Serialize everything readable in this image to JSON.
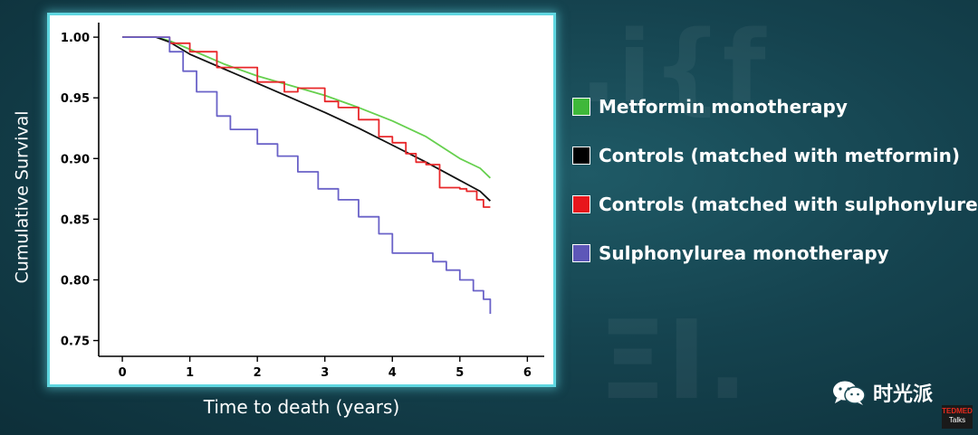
{
  "chart_data": {
    "type": "line",
    "title": "",
    "xlabel": "Time to death (years)",
    "ylabel": "Cumulative Survival",
    "xlim": [
      -0.35,
      6.25
    ],
    "ylim": [
      0.737,
      1.012
    ],
    "x_ticks": [
      0,
      1,
      2,
      3,
      4,
      5,
      6
    ],
    "y_ticks": [
      0.75,
      0.8,
      0.85,
      0.9,
      0.95,
      1.0
    ],
    "y_tick_labels": [
      "0.75",
      "0.80",
      "0.85",
      "0.90",
      "0.95",
      "1.00"
    ],
    "legend_position": "right",
    "series": [
      {
        "name": "Metformin monotherapy",
        "color": "#66d04e",
        "step": false,
        "x": [
          0,
          0.5,
          0.7,
          1.0,
          1.5,
          2.0,
          2.5,
          3.0,
          3.5,
          4.0,
          4.5,
          5.0,
          5.3,
          5.45
        ],
        "y": [
          1.0,
          1.0,
          0.997,
          0.99,
          0.978,
          0.968,
          0.96,
          0.952,
          0.942,
          0.931,
          0.918,
          0.9,
          0.892,
          0.884
        ]
      },
      {
        "name": "Controls (matched with metformin)",
        "color": "#111111",
        "step": false,
        "x": [
          0,
          0.5,
          0.7,
          1.0,
          1.5,
          2.0,
          2.5,
          3.0,
          3.5,
          4.0,
          4.5,
          5.0,
          5.3,
          5.45
        ],
        "y": [
          1.0,
          1.0,
          0.996,
          0.986,
          0.974,
          0.962,
          0.95,
          0.938,
          0.925,
          0.911,
          0.897,
          0.882,
          0.873,
          0.865
        ]
      },
      {
        "name": "Controls (matched with sulphonylurea)",
        "color": "#e8272a",
        "step": true,
        "x": [
          0,
          0.5,
          0.7,
          1.0,
          1.4,
          2.0,
          2.4,
          2.6,
          3.0,
          3.2,
          3.5,
          3.8,
          4.0,
          4.2,
          4.35,
          4.5,
          4.7,
          5.0,
          5.1,
          5.25,
          5.35,
          5.45
        ],
        "y": [
          1.0,
          1.0,
          0.995,
          0.988,
          0.975,
          0.963,
          0.955,
          0.958,
          0.947,
          0.942,
          0.932,
          0.918,
          0.913,
          0.904,
          0.897,
          0.895,
          0.876,
          0.875,
          0.873,
          0.866,
          0.86,
          0.86
        ]
      },
      {
        "name": "Sulphonylurea monotherapy",
        "color": "#6a62c8",
        "step": true,
        "x": [
          0,
          0.5,
          0.7,
          0.9,
          1.1,
          1.4,
          1.6,
          2.0,
          2.3,
          2.6,
          2.9,
          3.2,
          3.5,
          3.8,
          4.0,
          4.3,
          4.6,
          4.8,
          5.0,
          5.2,
          5.35,
          5.45
        ],
        "y": [
          1.0,
          1.0,
          0.988,
          0.972,
          0.955,
          0.935,
          0.924,
          0.912,
          0.902,
          0.889,
          0.875,
          0.866,
          0.852,
          0.838,
          0.822,
          0.822,
          0.815,
          0.808,
          0.8,
          0.791,
          0.784,
          0.772
        ]
      }
    ]
  },
  "legend": {
    "items": [
      {
        "label": "Metformin monotherapy",
        "color": "#3fb83a"
      },
      {
        "label": "Controls (matched with metformin)",
        "color": "#000000"
      },
      {
        "label": "Controls (matched with sulphonylurea)",
        "color": "#e8161c"
      },
      {
        "label": "Sulphonylurea monotherapy",
        "color": "#5e57b8"
      }
    ]
  },
  "watermark": {
    "text": "时光派",
    "icon": "wechat-icon"
  },
  "badge": {
    "line1": "TEDMED",
    "line2": "Talks"
  }
}
